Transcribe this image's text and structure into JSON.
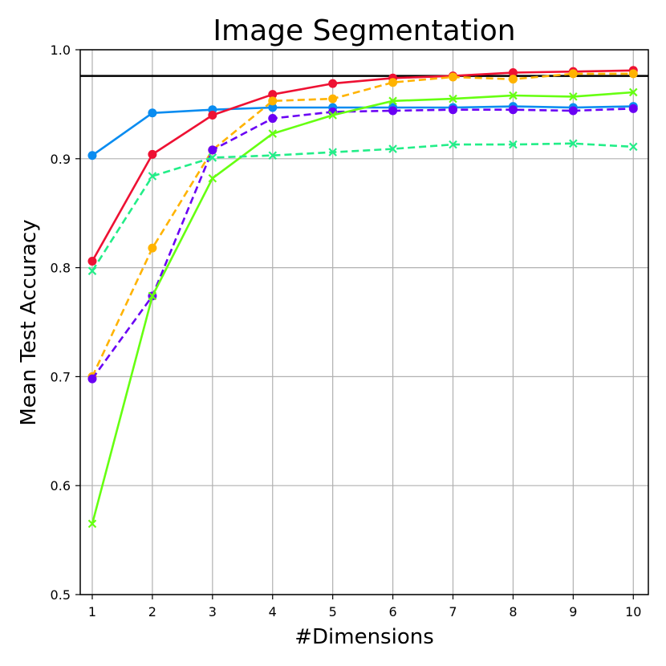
{
  "chart_data": {
    "type": "line",
    "title": "Image Segmentation",
    "xlabel": "#Dimensions",
    "ylabel": "Mean Test Accuracy",
    "x": [
      1,
      2,
      3,
      4,
      5,
      6,
      7,
      8,
      9,
      10
    ],
    "xlim": [
      0.8,
      10.25
    ],
    "ylim": [
      0.5,
      1.0
    ],
    "x_ticks": [
      "1",
      "2",
      "3",
      "4",
      "5",
      "6",
      "7",
      "8",
      "9",
      "10"
    ],
    "y_ticks": [
      "0.5",
      "0.6",
      "0.7",
      "0.8",
      "0.9",
      "1.0"
    ],
    "y_tick_values": [
      0.5,
      0.6,
      0.7,
      0.8,
      0.9,
      1.0
    ],
    "grid": true,
    "reference_line": {
      "y": 0.976,
      "color": "#000000"
    },
    "series": [
      {
        "color": "#0a8cf0",
        "style": "solid",
        "marker": "circle",
        "values": [
          0.903,
          0.942,
          0.945,
          0.947,
          0.947,
          0.947,
          0.947,
          0.948,
          0.947,
          0.948
        ]
      },
      {
        "color": "#ee1133",
        "style": "solid",
        "marker": "circle",
        "values": [
          0.806,
          0.904,
          0.94,
          0.959,
          0.969,
          0.974,
          0.976,
          0.979,
          0.98,
          0.981
        ]
      },
      {
        "color": "#ffb300",
        "style": "dashed",
        "marker": "circle",
        "values": [
          0.7,
          0.818,
          0.908,
          0.953,
          0.955,
          0.97,
          0.975,
          0.973,
          0.978,
          0.978
        ]
      },
      {
        "color": "#6a00f4",
        "style": "dashed",
        "marker": "circle",
        "values": [
          0.698,
          0.774,
          0.908,
          0.937,
          0.943,
          0.944,
          0.945,
          0.945,
          0.944,
          0.946
        ]
      },
      {
        "color": "#66ff11",
        "style": "solid",
        "marker": "x",
        "values": [
          0.565,
          0.774,
          0.882,
          0.923,
          0.94,
          0.953,
          0.955,
          0.958,
          0.957,
          0.961
        ]
      },
      {
        "color": "#22ee88",
        "style": "dashed",
        "marker": "x",
        "values": [
          0.797,
          0.884,
          0.901,
          0.903,
          0.906,
          0.909,
          0.913,
          0.913,
          0.914,
          0.911
        ]
      }
    ]
  }
}
